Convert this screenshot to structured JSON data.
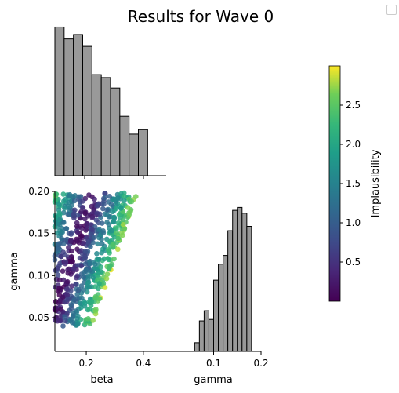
{
  "chart_data": {
    "type": "scatter",
    "title": "Results for Wave 0",
    "layout": "corner-plot",
    "colorbar": {
      "label": "Implausibility",
      "colormap": "viridis",
      "range": [
        0.0,
        3.0
      ],
      "ticks": [
        "0.5",
        "1.0",
        "1.5",
        "2.0",
        "2.5"
      ],
      "tick_values": [
        0.5,
        1.0,
        1.5,
        2.0,
        2.5
      ]
    },
    "legend": {
      "placement": "top-right",
      "entries": []
    },
    "beta_hist": {
      "type": "bar",
      "x_range": [
        0.09,
        0.48
      ],
      "bin_edges": [
        0.09,
        0.1225,
        0.155,
        0.1875,
        0.22,
        0.2525,
        0.285,
        0.3175,
        0.35,
        0.3825,
        0.415,
        0.4475
      ],
      "counts": [
        100,
        92,
        95,
        87,
        68,
        66,
        59,
        40,
        28,
        31,
        0
      ],
      "ylim": [
        0,
        105
      ]
    },
    "gamma_hist": {
      "type": "bar",
      "x_range": [
        0.0,
        0.2
      ],
      "bin_edges": [
        0.06,
        0.07,
        0.08,
        0.09,
        0.1,
        0.11,
        0.12,
        0.13,
        0.14,
        0.15,
        0.16,
        0.17,
        0.18,
        0.19,
        0.2
      ],
      "counts": [
        6,
        21,
        28,
        22,
        49,
        60,
        66,
        83,
        97,
        99,
        95,
        86,
        0,
        0
      ],
      "ylim": [
        0,
        110
      ]
    },
    "scatter": {
      "x_label": "beta",
      "y_label": "gamma",
      "x_range": [
        0.09,
        0.48
      ],
      "y_range": [
        0.01,
        0.2
      ],
      "x_ticks": [
        0.2,
        0.4
      ],
      "x_tick_labels": [
        "0.2",
        "0.4"
      ],
      "y_ticks": [
        0.05,
        0.1,
        0.15,
        0.2
      ],
      "y_tick_labels": [
        "0.05",
        "0.10",
        "0.15",
        "0.20"
      ],
      "region": "points fill band where gamma > beta - 0.18 and gamma < beta + 0.14; implausibility is low along the band center and high near edges"
    },
    "gamma_axis": {
      "x_label": "gamma",
      "x_ticks": [
        0.1,
        0.2
      ],
      "x_tick_labels": [
        "0.1",
        "0.2"
      ]
    }
  }
}
